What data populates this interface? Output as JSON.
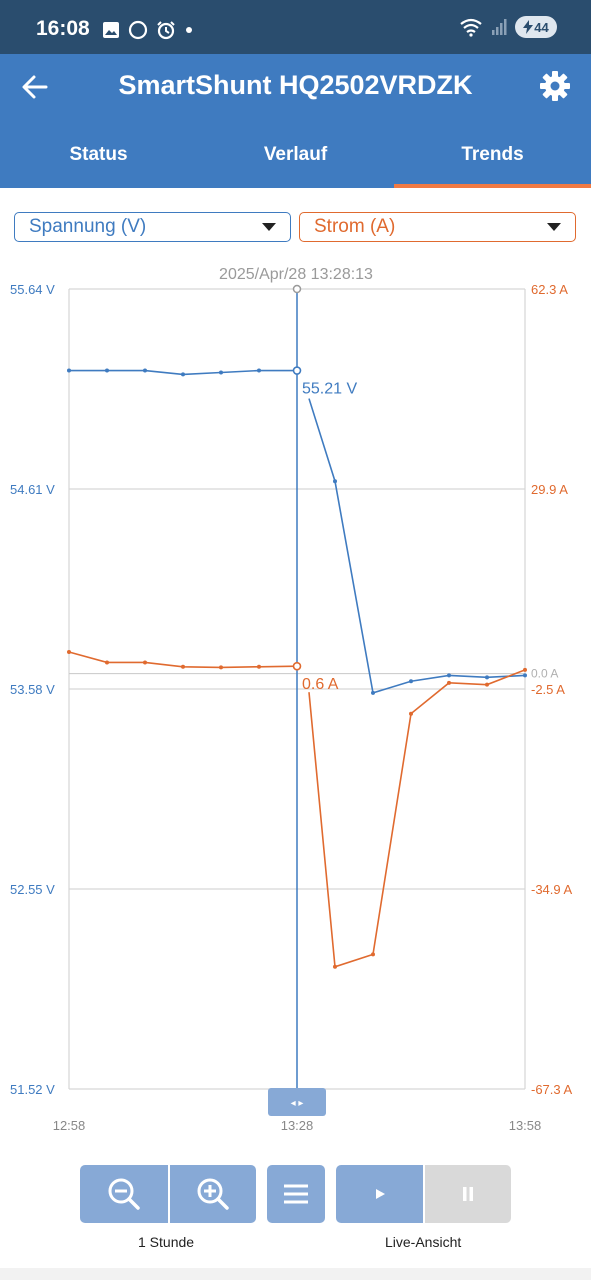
{
  "statusbar": {
    "time": "16:08",
    "battery": "44"
  },
  "appbar": {
    "title": "SmartShunt HQ2502VRDZK"
  },
  "tabs": [
    {
      "label": "Status",
      "active": false
    },
    {
      "label": "Verlauf",
      "active": false
    },
    {
      "label": "Trends",
      "active": true
    }
  ],
  "selectors": {
    "left": "Spannung (V)",
    "right": "Strom (A)"
  },
  "colors": {
    "primary": "#3f7bc0",
    "accent": "#e06a2f",
    "statusbar": "#2a4d6e"
  },
  "controls": {
    "zoom_label": "1 Stunde",
    "live_label": "Live-Ansicht"
  },
  "chart_data": {
    "type": "line",
    "cursor_label": "2025/Apr/28 13:28:13",
    "x_ticks": [
      "12:58",
      "13:28",
      "13:58"
    ],
    "x_range_minutes": [
      0,
      60
    ],
    "y_left": {
      "label": "V",
      "ticks": [
        "55.64 V",
        "54.61 V",
        "53.58 V",
        "52.55 V",
        "51.52 V"
      ],
      "range": [
        51.52,
        55.64
      ]
    },
    "y_right": {
      "label": "A",
      "ticks": [
        "62.3 A",
        "29.9 A",
        "-2.5 A",
        "-34.9 A",
        "-67.3 A"
      ],
      "range": [
        -67.3,
        62.3
      ]
    },
    "zero_label": "0.0 A",
    "series": [
      {
        "axis": "left",
        "color": "#3f7bc0",
        "cursor_value": "55.21 V",
        "x": [
          0,
          5,
          10,
          15,
          20,
          25,
          30,
          35,
          40,
          45,
          50,
          55,
          60
        ],
        "y": [
          55.22,
          55.22,
          55.22,
          55.2,
          55.21,
          55.22,
          55.22,
          54.65,
          53.56,
          53.62,
          53.65,
          53.64,
          53.65
        ]
      },
      {
        "axis": "right",
        "color": "#e06a2f",
        "cursor_value": "0.6 A",
        "x": [
          0,
          5,
          10,
          15,
          20,
          25,
          30,
          35,
          40,
          45,
          50,
          55,
          60
        ],
        "y": [
          3.5,
          1.8,
          1.8,
          1.1,
          1.0,
          1.1,
          1.2,
          -47.5,
          -45.5,
          -6.5,
          -1.5,
          -1.8,
          0.6
        ]
      }
    ]
  }
}
